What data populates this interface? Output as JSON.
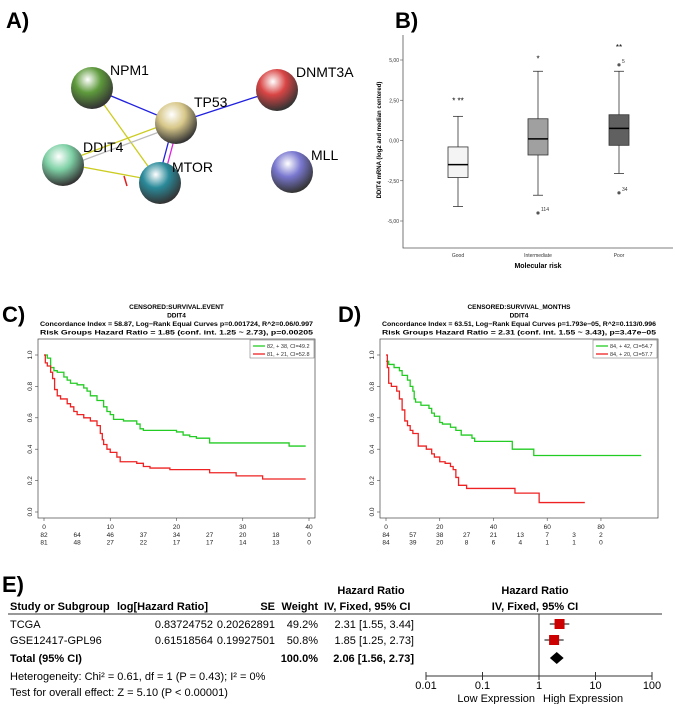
{
  "panel_labels": {
    "a": "A)",
    "b": "B)",
    "c": "C)",
    "d": "D)",
    "e": "E)"
  },
  "network": {
    "nodes": [
      {
        "id": "NPM1",
        "label": "NPM1",
        "color": "#5e9a3c"
      },
      {
        "id": "TP53",
        "label": "TP53",
        "color": "#d8c88a"
      },
      {
        "id": "DNMT3A",
        "label": "DNMT3A",
        "color": "#d94545"
      },
      {
        "id": "DDIT4",
        "label": "DDIT4",
        "color": "#7fd1a6"
      },
      {
        "id": "MTOR",
        "label": "MTOR",
        "color": "#2a8a9a"
      },
      {
        "id": "MLL",
        "label": "MLL",
        "color": "#7a78d0"
      }
    ],
    "edges": [
      {
        "from": "NPM1",
        "to": "TP53",
        "color": "#2020e0"
      },
      {
        "from": "TP53",
        "to": "DNMT3A",
        "color": "#2020e0"
      },
      {
        "from": "NPM1",
        "to": "MTOR",
        "color": "#cccc20"
      },
      {
        "from": "DDIT4",
        "to": "TP53",
        "color": "#cccc20"
      },
      {
        "from": "DDIT4",
        "to": "TP53",
        "color": "#bbbbbb"
      },
      {
        "from": "DDIT4",
        "to": "MTOR",
        "color": "#cccc20"
      },
      {
        "from": "TP53",
        "to": "MTOR",
        "color": "#2020e0"
      },
      {
        "from": "TP53",
        "to": "MTOR",
        "color": "#e020e0"
      }
    ]
  },
  "chart_data": [
    {
      "type": "box",
      "title": "",
      "xlabel": "Molecular risk",
      "ylabel": "DDIT4 mRNA (log2 and median centered)",
      "ylim": [
        -7,
        7.5
      ],
      "yticks": [
        "5,00",
        "2,50",
        "0,00",
        "-2,50",
        "-5,00"
      ],
      "ytick_values": [
        5,
        2.5,
        0,
        -2.5,
        -5
      ],
      "categories": [
        "Good",
        "Intermediate",
        "Poor"
      ],
      "boxes": [
        {
          "min": -4.1,
          "q1": -2.3,
          "median": -1.5,
          "q3": -0.4,
          "max": 1.5,
          "fill": "#f4f4f4",
          "outliers": [],
          "stars": "*  **",
          "star_y": 2.5
        },
        {
          "min": -3.4,
          "q1": -0.9,
          "median": 0.1,
          "q3": 1.35,
          "max": 4.3,
          "fill": "#a0a0a0",
          "outliers": [
            {
              "v": -4.5,
              "label": "114"
            }
          ],
          "stars": "*",
          "star_y": 5.1
        },
        {
          "min": -2.05,
          "q1": -0.3,
          "median": 0.75,
          "q3": 1.6,
          "max": 4.3,
          "fill": "#606060",
          "outliers": [
            {
              "v": 4.7,
              "label": "5"
            },
            {
              "v": -3.25,
              "label": "34"
            }
          ],
          "stars": "**",
          "star_y": 5.8
        }
      ]
    },
    {
      "type": "line",
      "title": [
        "CENSORED:SURVIVAL.EVENT",
        "DDIT4",
        "Concordance Index = 58.87, Log−Rank Equal Curves p=0.001724, R^2=0.06/0.997",
        "Risk Groups Hazard Ratio = 1.85 (conf. int. 1.25 ~ 2.73), p=0.00205"
      ],
      "xlim": [
        0,
        40
      ],
      "ylim": [
        0,
        1
      ],
      "xticks": [
        0,
        10,
        20,
        30,
        40
      ],
      "yticks": [
        "0.0",
        "0.2",
        "0.4",
        "0.6",
        "0.8",
        "1.0"
      ],
      "legend_position": "top-right",
      "series": [
        {
          "name": "82, + 38, CI=49.2",
          "color": "#22cc22",
          "points": [
            [
              0,
              1
            ],
            [
              0.5,
              0.98
            ],
            [
              1,
              0.92
            ],
            [
              1.5,
              0.9
            ],
            [
              2,
              0.89
            ],
            [
              3,
              0.86
            ],
            [
              3.5,
              0.84
            ],
            [
              4,
              0.82
            ],
            [
              5,
              0.81
            ],
            [
              6,
              0.79
            ],
            [
              6.5,
              0.77
            ],
            [
              7,
              0.74
            ],
            [
              8,
              0.71
            ],
            [
              9,
              0.67
            ],
            [
              9.5,
              0.64
            ],
            [
              10,
              0.62
            ],
            [
              10.5,
              0.59
            ],
            [
              12,
              0.58
            ],
            [
              14,
              0.56
            ],
            [
              14.5,
              0.53
            ],
            [
              15,
              0.52
            ],
            [
              20,
              0.51
            ],
            [
              21,
              0.49
            ],
            [
              22,
              0.48
            ],
            [
              23,
              0.47
            ],
            [
              25,
              0.44
            ],
            [
              37,
              0.42
            ],
            [
              39.5,
              0.42
            ]
          ]
        },
        {
          "name": "81, + 21, CI=52.8",
          "color": "#ee2222",
          "points": [
            [
              0,
              1
            ],
            [
              0.2,
              0.95
            ],
            [
              0.5,
              0.93
            ],
            [
              1,
              0.89
            ],
            [
              1.3,
              0.85
            ],
            [
              1.6,
              0.78
            ],
            [
              2,
              0.74
            ],
            [
              2.5,
              0.72
            ],
            [
              3.5,
              0.69
            ],
            [
              4,
              0.67
            ],
            [
              4.5,
              0.64
            ],
            [
              5,
              0.62
            ],
            [
              6,
              0.6
            ],
            [
              7,
              0.58
            ],
            [
              8,
              0.55
            ],
            [
              8.5,
              0.5
            ],
            [
              8.8,
              0.46
            ],
            [
              9,
              0.43
            ],
            [
              9.5,
              0.4
            ],
            [
              10,
              0.38
            ],
            [
              11,
              0.35
            ],
            [
              11.5,
              0.32
            ],
            [
              14,
              0.31
            ],
            [
              15,
              0.29
            ],
            [
              16,
              0.28
            ],
            [
              19,
              0.27
            ],
            [
              25,
              0.25
            ],
            [
              29,
              0.23
            ],
            [
              33,
              0.21
            ],
            [
              39.5,
              0.21
            ]
          ]
        }
      ],
      "risk_times": [
        0,
        5,
        10,
        15,
        20,
        25,
        30,
        35,
        40
      ],
      "risk_table": [
        [
          "82",
          "64",
          "46",
          "37",
          "34",
          "27",
          "20",
          "18",
          "0"
        ],
        [
          "81",
          "48",
          "27",
          "22",
          "17",
          "17",
          "14",
          "13",
          "0"
        ]
      ]
    },
    {
      "type": "line",
      "title": [
        "CENSORED:SURVIVAL_MONTHS",
        "DDIT4",
        "Concordance Index = 63.51, Log−Rank Equal Curves p=1.793e−05, R^2=0.113/0.996",
        "Risk Groups Hazard Ratio = 2.31 (conf. int. 1.55 ~ 3.43), p=3.47e−05"
      ],
      "xlim": [
        0,
        99
      ],
      "ylim": [
        0,
        1
      ],
      "xticks": [
        0,
        20,
        40,
        60,
        80
      ],
      "yticks": [
        "0.0",
        "0.2",
        "0.4",
        "0.6",
        "0.8",
        "1.0"
      ],
      "legend_position": "top-right",
      "series": [
        {
          "name": "84, + 42, CI=54.7",
          "color": "#22cc22",
          "points": [
            [
              0,
              0.96
            ],
            [
              1,
              0.94
            ],
            [
              3,
              0.92
            ],
            [
              5,
              0.9
            ],
            [
              6,
              0.87
            ],
            [
              8,
              0.84
            ],
            [
              9,
              0.8
            ],
            [
              10,
              0.77
            ],
            [
              10.5,
              0.72
            ],
            [
              11,
              0.7
            ],
            [
              13,
              0.68
            ],
            [
              16,
              0.66
            ],
            [
              17,
              0.63
            ],
            [
              18,
              0.61
            ],
            [
              20,
              0.57
            ],
            [
              21,
              0.56
            ],
            [
              24,
              0.54
            ],
            [
              26,
              0.52
            ],
            [
              28,
              0.49
            ],
            [
              32,
              0.47
            ],
            [
              33,
              0.45
            ],
            [
              47,
              0.4
            ],
            [
              55,
              0.36
            ],
            [
              95,
              0.36
            ]
          ]
        },
        {
          "name": "84, + 20, CI=57.7",
          "color": "#ee2222",
          "points": [
            [
              0,
              1
            ],
            [
              0.5,
              0.92
            ],
            [
              1,
              0.82
            ],
            [
              2,
              0.8
            ],
            [
              4,
              0.77
            ],
            [
              5,
              0.72
            ],
            [
              6,
              0.65
            ],
            [
              7,
              0.58
            ],
            [
              8,
              0.55
            ],
            [
              9,
              0.52
            ],
            [
              10,
              0.5
            ],
            [
              12,
              0.42
            ],
            [
              15,
              0.4
            ],
            [
              17,
              0.37
            ],
            [
              18,
              0.35
            ],
            [
              20,
              0.32
            ],
            [
              22,
              0.31
            ],
            [
              24,
              0.29
            ],
            [
              25,
              0.27
            ],
            [
              26,
              0.22
            ],
            [
              27,
              0.17
            ],
            [
              30,
              0.15
            ],
            [
              48,
              0.12
            ],
            [
              57,
              0.06
            ],
            [
              74,
              0.06
            ]
          ]
        }
      ],
      "risk_times": [
        0,
        10,
        20,
        30,
        40,
        50,
        60,
        70,
        80
      ],
      "risk_table": [
        [
          "84",
          "57",
          "38",
          "27",
          "21",
          "13",
          "7",
          "3",
          "2"
        ],
        [
          "84",
          "39",
          "20",
          "8",
          "6",
          "4",
          "1",
          "1",
          "0"
        ]
      ]
    },
    {
      "type": "forest",
      "headers": {
        "study": "Study or Subgroup",
        "loghr": "log[Hazard Ratio]",
        "se": "SE",
        "weight": "Weight",
        "hr_top": "Hazard Ratio",
        "hr": "IV, Fixed, 95% CI",
        "plot_top": "Hazard Ratio",
        "plot": "IV, Fixed, 95% CI"
      },
      "rows": [
        {
          "study": "TCGA",
          "loghr": "0.83724752",
          "se": "0.20262891",
          "weight": "49.2%",
          "ci_text": "2.31 [1.55, 3.44]",
          "hr": 2.31,
          "lo": 1.55,
          "hi": 3.44
        },
        {
          "study": "GSE12417-GPL96",
          "loghr": "0.61518564",
          "se": "0.19927501",
          "weight": "50.8%",
          "ci_text": "1.85 [1.25, 2.73]",
          "hr": 1.85,
          "lo": 1.25,
          "hi": 2.73
        }
      ],
      "total": {
        "label": "Total (95% CI)",
        "weight": "100.0%",
        "ci_text": "2.06 [1.56, 2.73]",
        "hr": 2.06,
        "lo": 1.56,
        "hi": 2.73
      },
      "heterogeneity": "Heterogeneity: Chi² = 0.61, df = 1 (P = 0.43); I² = 0%",
      "overall": "Test for overall effect: Z = 5.10 (P < 0.00001)",
      "axis_ticks": [
        "0.01",
        "0.1",
        "1",
        "10",
        "100"
      ],
      "axis_values": [
        0.01,
        0.1,
        1,
        10,
        100
      ],
      "low_label": "Low Expression",
      "high_label": "High Expression",
      "marker_color": "#cc0000"
    }
  ]
}
